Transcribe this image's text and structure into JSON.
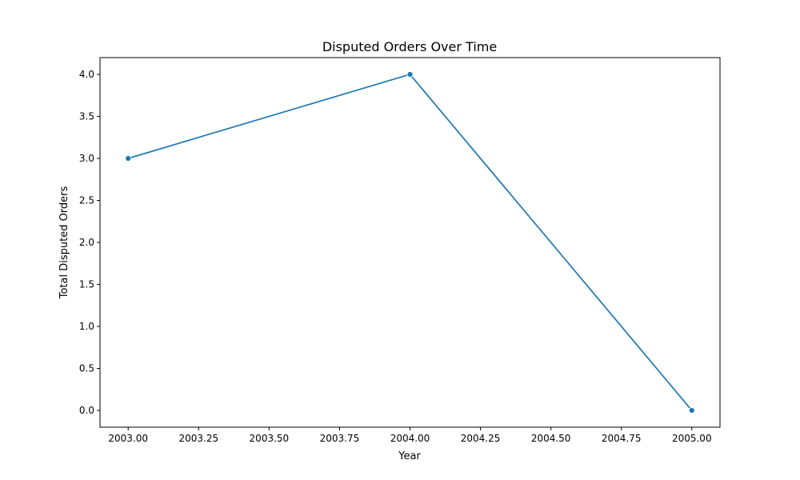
{
  "chart_data": {
    "type": "line",
    "title": "Disputed Orders Over Time",
    "xlabel": "Year",
    "ylabel": "Total Disputed Orders",
    "xlim": [
      2002.9,
      2005.1
    ],
    "ylim": [
      -0.2,
      4.2
    ],
    "x_ticks": [
      "2003.00",
      "2003.25",
      "2003.50",
      "2003.75",
      "2004.00",
      "2004.25",
      "2004.50",
      "2004.75",
      "2005.00"
    ],
    "y_ticks": [
      "0.0",
      "0.5",
      "1.0",
      "1.5",
      "2.0",
      "2.5",
      "3.0",
      "3.5",
      "4.0"
    ],
    "grid": false,
    "color": "#1f77b4",
    "series": [
      {
        "x": [
          2003,
          2004,
          2005
        ],
        "y": [
          3,
          4,
          0
        ]
      }
    ]
  }
}
